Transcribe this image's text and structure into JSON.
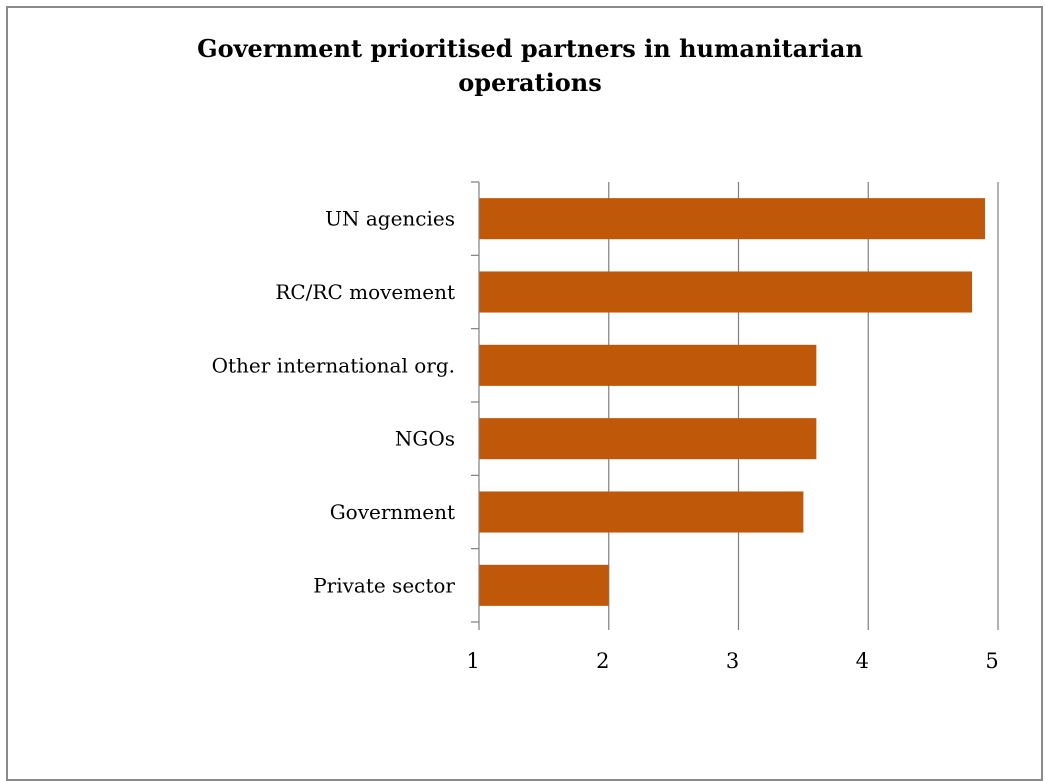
{
  "chart_data": {
    "type": "bar",
    "orientation": "horizontal",
    "title": "Government prioritised partners in humanitarian operations",
    "categories": [
      "UN agencies",
      "RC/RC movement",
      "Other international org.",
      "NGOs",
      "Government",
      "Private sector"
    ],
    "values": [
      4.9,
      4.8,
      3.6,
      3.6,
      3.5,
      2.0
    ],
    "xlim": [
      1,
      5
    ],
    "xticks": [
      "1",
      "2",
      "3",
      "4",
      "5"
    ],
    "xlabel": "",
    "ylabel": "",
    "grid": "vertical",
    "legend": "none",
    "bar_color": "#C0580A",
    "grid_color": "#7f7f7f",
    "axis_color": "#7f7f7f"
  }
}
